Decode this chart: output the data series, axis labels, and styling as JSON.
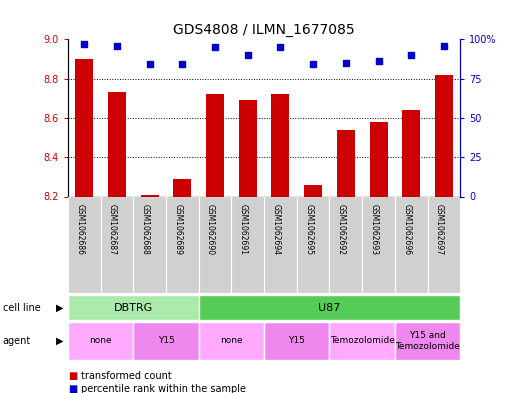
{
  "title": "GDS4808 / ILMN_1677085",
  "samples": [
    "GSM1062686",
    "GSM1062687",
    "GSM1062688",
    "GSM1062689",
    "GSM1062690",
    "GSM1062691",
    "GSM1062694",
    "GSM1062695",
    "GSM1062692",
    "GSM1062693",
    "GSM1062696",
    "GSM1062697"
  ],
  "transformed_count": [
    8.9,
    8.73,
    8.21,
    8.29,
    8.72,
    8.69,
    8.72,
    8.26,
    8.54,
    8.58,
    8.64,
    8.82
  ],
  "percentile_rank": [
    97,
    96,
    84,
    84,
    95,
    90,
    95,
    84,
    85,
    86,
    90,
    96
  ],
  "ylim_left": [
    8.2,
    9.0
  ],
  "ylim_right": [
    0,
    100
  ],
  "yticks_left": [
    8.2,
    8.4,
    8.6,
    8.8,
    9.0
  ],
  "yticks_right_vals": [
    0,
    25,
    50,
    75,
    100
  ],
  "yticks_right_labels": [
    "0",
    "25",
    "50",
    "75",
    "100%"
  ],
  "gridlines": [
    8.4,
    8.6,
    8.8
  ],
  "bar_color": "#cc0000",
  "dot_color": "#0000cc",
  "cell_line_groups": [
    {
      "label": "DBTRG",
      "start": 0,
      "end": 3,
      "color": "#aaeaaa"
    },
    {
      "label": "U87",
      "start": 4,
      "end": 11,
      "color": "#55cc55"
    }
  ],
  "agent_groups": [
    {
      "label": "none",
      "start": 0,
      "end": 1,
      "color": "#ffaaff"
    },
    {
      "label": "Y15",
      "start": 2,
      "end": 3,
      "color": "#ee88ee"
    },
    {
      "label": "none",
      "start": 4,
      "end": 5,
      "color": "#ffaaff"
    },
    {
      "label": "Y15",
      "start": 6,
      "end": 7,
      "color": "#ee88ee"
    },
    {
      "label": "Temozolomide",
      "start": 8,
      "end": 9,
      "color": "#ffaaff"
    },
    {
      "label": "Y15 and\nTemozolomide",
      "start": 10,
      "end": 11,
      "color": "#ee88ee"
    }
  ],
  "xlabel_bg_color": "#d0d0d0",
  "cell_line_label": "cell line",
  "agent_label": "agent",
  "legend": [
    {
      "label": "transformed count",
      "color": "#cc0000"
    },
    {
      "label": "percentile rank within the sample",
      "color": "#0000cc"
    }
  ]
}
